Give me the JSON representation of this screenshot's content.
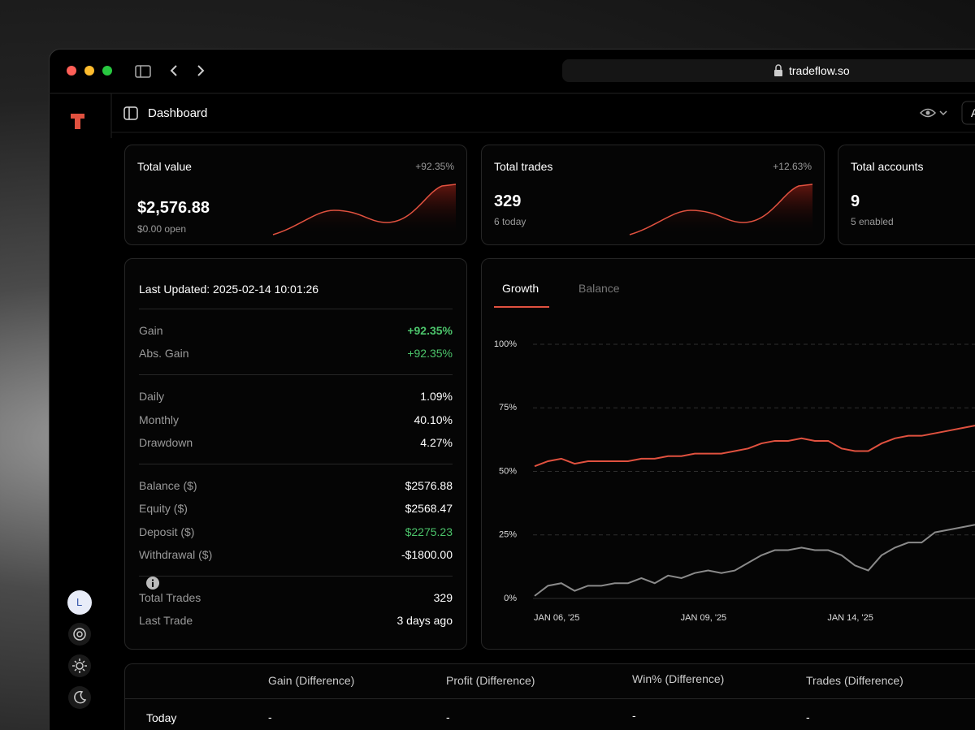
{
  "browser": {
    "url": "tradeflow.so"
  },
  "header": {
    "title": "Dashboard",
    "action": "A"
  },
  "sidebar": {
    "avatar": "L"
  },
  "cards": [
    {
      "title": "Total value",
      "change": "+92.35%",
      "value": "$2,576.88",
      "sub": "$0.00 open"
    },
    {
      "title": "Total trades",
      "change": "+12.63%",
      "value": "329",
      "sub": "6 today"
    },
    {
      "title": "Total accounts",
      "value": "9",
      "sub": "5 enabled"
    }
  ],
  "stats": {
    "last_updated": "Last Updated: 2025-02-14 10:01:26",
    "groups": [
      [
        {
          "label": "Gain",
          "value": "+92.35%",
          "color": "#4cc46b",
          "bold": true
        },
        {
          "label": "Abs. Gain",
          "value": "+92.35%",
          "color": "#4cc46b"
        }
      ],
      [
        {
          "label": "Daily",
          "value": "1.09%"
        },
        {
          "label": "Monthly",
          "value": "40.10%"
        },
        {
          "label": "Drawdown",
          "value": "4.27%"
        }
      ],
      [
        {
          "label": "Balance ($)",
          "value": "$2576.88"
        },
        {
          "label": "Equity ($)",
          "value": "$2568.47"
        },
        {
          "label": "Deposit ($)",
          "value": "$2275.23",
          "color": "#4cc46b"
        },
        {
          "label": "Withdrawal ($)",
          "value": "-$1800.00"
        }
      ],
      [
        {
          "label": "Total Trades",
          "value": "329"
        },
        {
          "label": "Last Trade",
          "value": "3 days ago"
        }
      ]
    ]
  },
  "chart_data": {
    "type": "line",
    "tabs": [
      "Growth",
      "Balance"
    ],
    "active_tab": 0,
    "categories": [
      "JAN 06, '25",
      null,
      null,
      null,
      null,
      null,
      null,
      null,
      null,
      null,
      null,
      "JAN 09, '25",
      null,
      null,
      null,
      null,
      null,
      null,
      null,
      null,
      null,
      null,
      "JAN 14, '25",
      null,
      null,
      null,
      null,
      null,
      null,
      null,
      null,
      null,
      null,
      null
    ],
    "series": [
      {
        "color": "#e0513f",
        "values": [
          52,
          54,
          55,
          53,
          54,
          54,
          54,
          54,
          55,
          55,
          56,
          56,
          57,
          57,
          57,
          58,
          59,
          61,
          62,
          62,
          63,
          62,
          62,
          59,
          58,
          58,
          61,
          63,
          64,
          64,
          65,
          66,
          67,
          68
        ]
      },
      {
        "color": "#8a8a8a",
        "values": [
          1,
          5,
          6,
          3,
          5,
          5,
          6,
          6,
          8,
          6,
          9,
          8,
          10,
          11,
          10,
          11,
          14,
          17,
          19,
          19,
          20,
          19,
          19,
          17,
          13,
          11,
          17,
          20,
          22,
          22,
          26,
          27,
          28,
          29
        ]
      }
    ],
    "ylim": [
      0,
      100
    ],
    "yticks": [
      {
        "value": 0,
        "label": "0%"
      },
      {
        "value": 25,
        "label": "25%"
      },
      {
        "value": 50,
        "label": "50%"
      },
      {
        "value": 75,
        "label": "75%"
      },
      {
        "value": 100,
        "label": "100%"
      }
    ],
    "grid": true
  },
  "table": {
    "columns": [
      "Gain (Difference)",
      "Profit (Difference)",
      "Win% (Difference)",
      "Trades (Difference)"
    ],
    "rows": [
      {
        "label": "Today",
        "cells": [
          "-",
          "-",
          "-",
          "-"
        ]
      }
    ]
  }
}
